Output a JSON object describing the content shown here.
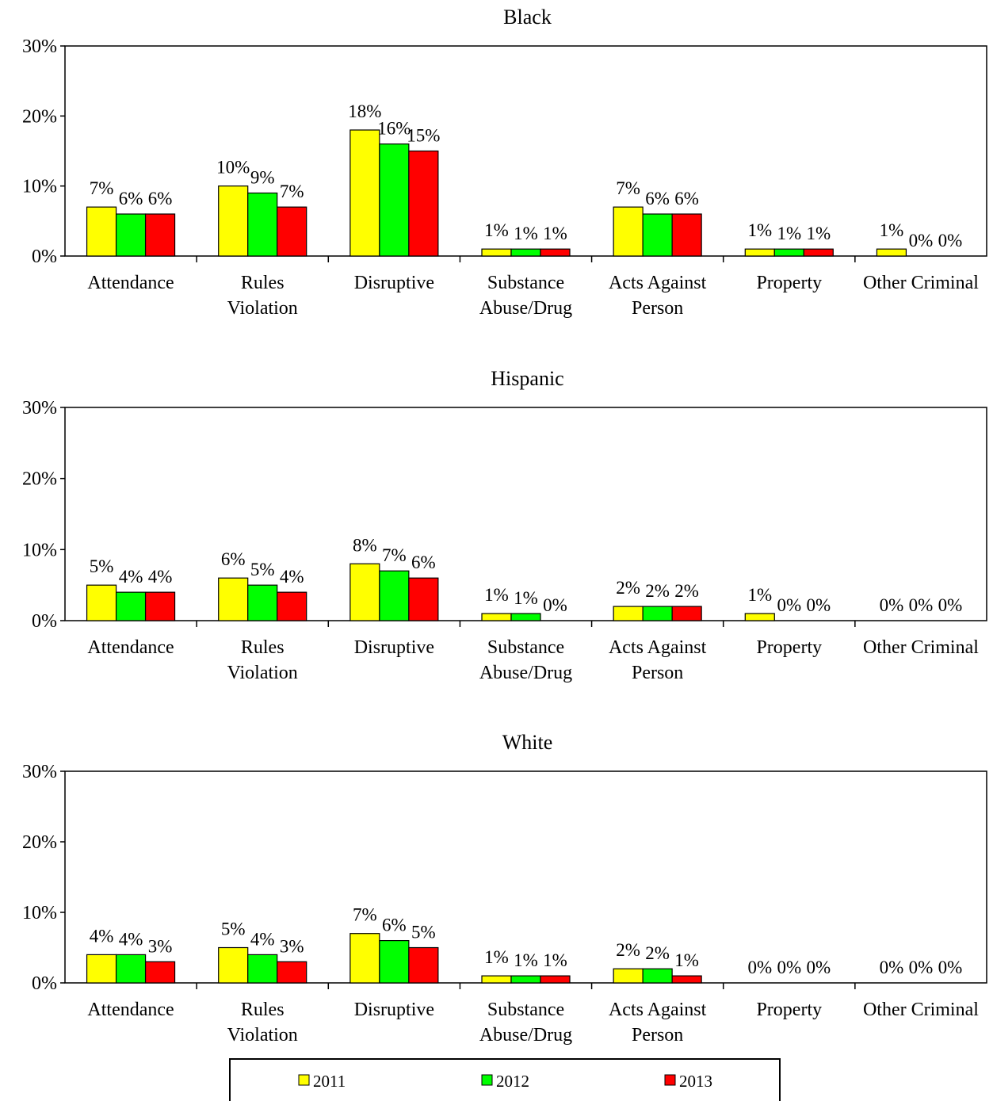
{
  "chart_data": [
    {
      "type": "bar",
      "title": "Black",
      "categories": [
        [
          "Attendance"
        ],
        [
          "Rules",
          "Violation"
        ],
        [
          "Disruptive"
        ],
        [
          "Substance",
          "Abuse/Drug"
        ],
        [
          "Acts Against",
          "Person"
        ],
        [
          "Property"
        ],
        [
          "Other Criminal"
        ]
      ],
      "series": [
        {
          "name": "2011",
          "values": [
            7,
            10,
            18,
            1,
            7,
            1,
            1
          ],
          "labels": [
            "7%",
            "10%",
            "18%",
            "1%",
            "7%",
            "1%",
            "1%"
          ]
        },
        {
          "name": "2012",
          "values": [
            6,
            9,
            16,
            1,
            6,
            1,
            0
          ],
          "labels": [
            "6%",
            "9%",
            "16%",
            "1%",
            "6%",
            "1%",
            "0%"
          ]
        },
        {
          "name": "2013",
          "values": [
            6,
            7,
            15,
            1,
            6,
            1,
            0
          ],
          "labels": [
            "6%",
            "7%",
            "15%",
            "1%",
            "6%",
            "1%",
            "0%"
          ]
        }
      ],
      "ylim": [
        0,
        30
      ],
      "yticks": [
        "0%",
        "10%",
        "20%",
        "30%"
      ]
    },
    {
      "type": "bar",
      "title": "Hispanic",
      "categories": [
        [
          "Attendance"
        ],
        [
          "Rules",
          "Violation"
        ],
        [
          "Disruptive"
        ],
        [
          "Substance",
          "Abuse/Drug"
        ],
        [
          "Acts Against",
          "Person"
        ],
        [
          "Property"
        ],
        [
          "Other Criminal"
        ]
      ],
      "series": [
        {
          "name": "2011",
          "values": [
            5,
            6,
            8,
            1,
            2,
            1,
            0
          ],
          "labels": [
            "5%",
            "6%",
            "8%",
            "1%",
            "2%",
            "1%",
            "0%"
          ]
        },
        {
          "name": "2012",
          "values": [
            4,
            5,
            7,
            1,
            2,
            0,
            0
          ],
          "labels": [
            "4%",
            "5%",
            "7%",
            "1%",
            "2%",
            "0%",
            "0%"
          ]
        },
        {
          "name": "2013",
          "values": [
            4,
            4,
            6,
            0,
            2,
            0,
            0
          ],
          "labels": [
            "4%",
            "4%",
            "6%",
            "0%",
            "2%",
            "0%",
            "0%"
          ]
        }
      ],
      "ylim": [
        0,
        30
      ],
      "yticks": [
        "0%",
        "10%",
        "20%",
        "30%"
      ]
    },
    {
      "type": "bar",
      "title": "White",
      "categories": [
        [
          "Attendance"
        ],
        [
          "Rules",
          "Violation"
        ],
        [
          "Disruptive"
        ],
        [
          "Substance",
          "Abuse/Drug"
        ],
        [
          "Acts Against",
          "Person"
        ],
        [
          "Property"
        ],
        [
          "Other Criminal"
        ]
      ],
      "series": [
        {
          "name": "2011",
          "values": [
            4,
            5,
            7,
            1,
            2,
            0,
            0
          ],
          "labels": [
            "4%",
            "5%",
            "7%",
            "1%",
            "2%",
            "0%",
            "0%"
          ]
        },
        {
          "name": "2012",
          "values": [
            4,
            4,
            6,
            1,
            2,
            0,
            0
          ],
          "labels": [
            "4%",
            "4%",
            "6%",
            "1%",
            "2%",
            "0%",
            "0%"
          ]
        },
        {
          "name": "2013",
          "values": [
            3,
            3,
            5,
            1,
            1,
            0,
            0
          ],
          "labels": [
            "3%",
            "3%",
            "5%",
            "1%",
            "1%",
            "0%",
            "0%"
          ]
        }
      ],
      "ylim": [
        0,
        30
      ],
      "yticks": [
        "0%",
        "10%",
        "20%",
        "30%"
      ]
    }
  ],
  "colors": {
    "2011": "#ffff00",
    "2012": "#00ff00",
    "2013": "#ff0000"
  },
  "legend": {
    "placement": "bottom",
    "items": [
      {
        "label": "2011",
        "color": "#ffff00"
      },
      {
        "label": "2012",
        "color": "#00ff00"
      },
      {
        "label": "2013",
        "color": "#ff0000"
      }
    ]
  }
}
